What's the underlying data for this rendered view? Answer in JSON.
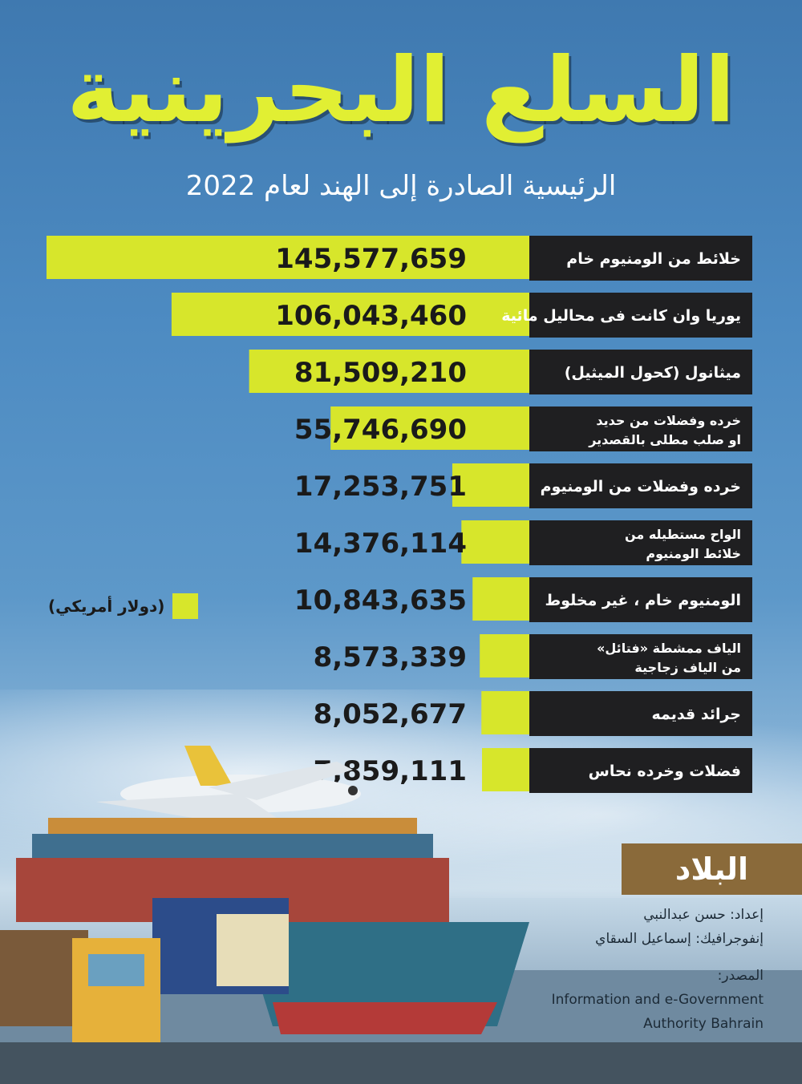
{
  "title": "السلع البحرينية",
  "subtitle": "الرئيسية الصادرة إلى الهند لعام 2022",
  "legend": {
    "label": "(دولار أمريكي)"
  },
  "logo": {
    "text": "البلاد"
  },
  "credits": {
    "prepared": "إعداد: حسن عبدالنبي",
    "infographic": "إنفوجرافيك: إسماعيل السقاي",
    "source_label": "المصدر:",
    "source_line1": "Information and e-Government",
    "source_line2": "Authority Bahrain"
  },
  "colors": {
    "bar": "#d7e62b",
    "label_bg": "#1f1f21",
    "label_text": "#ffffff",
    "value_text": "#1a1a1a",
    "title": "#e1ef33"
  },
  "chart_data": {
    "type": "bar",
    "categories": [
      [
        "خلائط من الومنيوم خام"
      ],
      [
        "يوريا وان كانت فى محاليل مائية"
      ],
      [
        "ميثانول (كحول الميثيل)"
      ],
      [
        "خرده وفضلات من حديد",
        "او صلب مطلى بالقصدير"
      ],
      [
        "خرده وفضلات من الومنيوم"
      ],
      [
        "الواح مستطيله من",
        "خلائط الومنيوم"
      ],
      [
        "الومنيوم خام ، غير مخلوط"
      ],
      [
        "الياف ممشطة «فتائل»",
        "من الياف زجاجية"
      ],
      [
        "جرائد قديمه"
      ],
      [
        "فضلات وخرده نحاس"
      ]
    ],
    "values": [
      145577659,
      106043460,
      81509210,
      55746690,
      17253751,
      14376114,
      10843635,
      8573339,
      8052677,
      7859111
    ],
    "value_labels": [
      "145,577,659",
      "106,043,460",
      "81,509,210",
      "55,746,690",
      "17,253,751",
      "14,376,114",
      "10,843,635",
      "8,573,339",
      "8,052,677",
      "7,859,111"
    ],
    "unit": "(دولار أمريكي)",
    "orientation": "horizontal-rtl"
  }
}
